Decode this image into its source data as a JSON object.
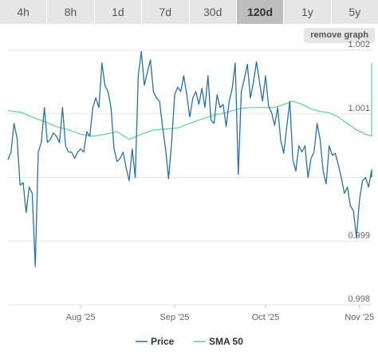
{
  "tabs": [
    {
      "label": "4h",
      "active": false
    },
    {
      "label": "8h",
      "active": false
    },
    {
      "label": "1d",
      "active": false
    },
    {
      "label": "7d",
      "active": false
    },
    {
      "label": "30d",
      "active": false
    },
    {
      "label": "120d",
      "active": true
    },
    {
      "label": "1y",
      "active": false
    },
    {
      "label": "5y",
      "active": false
    }
  ],
  "remove_graph_label": "remove graph",
  "colors": {
    "price": "#2b6fa4",
    "sma": "#5ed28a",
    "grid": "#e6e6e6",
    "tab_bg": "#e6e6e6",
    "tab_active_bg": "#bdbdbd"
  },
  "chart_data": {
    "type": "line",
    "grid": true,
    "legend_position": "bottom",
    "ylim": [
      0.998,
      1.002
    ],
    "y_ticks": [
      0.998,
      0.999,
      1.0,
      1.001,
      1.002
    ],
    "y_tick_labels": [
      "0.998",
      "0.999",
      "",
      "1.001",
      "1.002"
    ],
    "x_range": [
      "2025-07-08",
      "2025-11-05"
    ],
    "x_ticks": [
      {
        "date": "2025-08-01",
        "label": "Aug '25"
      },
      {
        "date": "2025-09-01",
        "label": "Sep '25"
      },
      {
        "date": "2025-10-01",
        "label": "Oct '25"
      },
      {
        "date": "2025-11-01",
        "label": "Nov '25"
      }
    ],
    "series": [
      {
        "name": "Price",
        "color": "#2b6fa4",
        "points": [
          [
            "2025-07-08",
            1.00028
          ],
          [
            "2025-07-09",
            1.0004
          ],
          [
            "2025-07-10",
            1.00085
          ],
          [
            "2025-07-11",
            1.00062
          ],
          [
            "2025-07-12",
            0.99988
          ],
          [
            "2025-07-13",
            0.99992
          ],
          [
            "2025-07-14",
            0.99945
          ],
          [
            "2025-07-15",
            0.99985
          ],
          [
            "2025-07-16",
            0.99975
          ],
          [
            "2025-07-17",
            0.9986
          ],
          [
            "2025-07-18",
            1.0004
          ],
          [
            "2025-07-19",
            1.00055
          ],
          [
            "2025-07-20",
            1.0011
          ],
          [
            "2025-07-21",
            1.00055
          ],
          [
            "2025-07-22",
            1.0006
          ],
          [
            "2025-07-23",
            1.0007
          ],
          [
            "2025-07-24",
            1.00065
          ],
          [
            "2025-07-25",
            1.00055
          ],
          [
            "2025-07-26",
            1.0011
          ],
          [
            "2025-07-27",
            1.0005
          ],
          [
            "2025-07-28",
            1.0004
          ],
          [
            "2025-07-29",
            1.0004
          ],
          [
            "2025-07-30",
            1.0003
          ],
          [
            "2025-07-31",
            1.0004
          ],
          [
            "2025-08-01",
            1.00045
          ],
          [
            "2025-08-02",
            1.0004
          ],
          [
            "2025-08-03",
            1.00072
          ],
          [
            "2025-08-04",
            1.00065
          ],
          [
            "2025-08-05",
            1.0011
          ],
          [
            "2025-08-06",
            1.00125
          ],
          [
            "2025-08-07",
            1.0011
          ],
          [
            "2025-08-08",
            1.0018
          ],
          [
            "2025-08-09",
            1.00145
          ],
          [
            "2025-08-10",
            1.00135
          ],
          [
            "2025-08-11",
            1.0011
          ],
          [
            "2025-08-12",
            1.00045
          ],
          [
            "2025-08-13",
            1.00025
          ],
          [
            "2025-08-14",
            1.0003
          ],
          [
            "2025-08-15",
            1.0004
          ],
          [
            "2025-08-16",
            1.00015
          ],
          [
            "2025-08-17",
            0.99995
          ],
          [
            "2025-08-18",
            1.00045
          ],
          [
            "2025-08-19",
            1.0
          ],
          [
            "2025-08-20",
            1.0016
          ],
          [
            "2025-08-21",
            1.00198
          ],
          [
            "2025-08-22",
            1.00145
          ],
          [
            "2025-08-23",
            1.00165
          ],
          [
            "2025-08-24",
            1.00185
          ],
          [
            "2025-08-25",
            1.00135
          ],
          [
            "2025-08-26",
            1.00125
          ],
          [
            "2025-08-27",
            1.0012
          ],
          [
            "2025-08-28",
            1.0008
          ],
          [
            "2025-08-29",
            1.00045
          ],
          [
            "2025-08-30",
            0.99998
          ],
          [
            "2025-08-31",
            1.00055
          ],
          [
            "2025-09-01",
            1.0013
          ],
          [
            "2025-09-02",
            1.00142
          ],
          [
            "2025-09-03",
            1.00135
          ],
          [
            "2025-09-04",
            1.0016
          ],
          [
            "2025-09-05",
            1.0013
          ],
          [
            "2025-09-06",
            1.00095
          ],
          [
            "2025-09-07",
            1.00125
          ],
          [
            "2025-09-08",
            1.00135
          ],
          [
            "2025-09-09",
            1.00115
          ],
          [
            "2025-09-10",
            1.0014
          ],
          [
            "2025-09-11",
            1.0011
          ],
          [
            "2025-09-12",
            1.0016
          ],
          [
            "2025-09-13",
            1.0009
          ],
          [
            "2025-09-14",
            1.00085
          ],
          [
            "2025-09-15",
            1.0013
          ],
          [
            "2025-09-16",
            1.0011
          ],
          [
            "2025-09-17",
            1.00115
          ],
          [
            "2025-09-18",
            1.0008
          ],
          [
            "2025-09-19",
            1.0012
          ],
          [
            "2025-09-20",
            1.0014
          ],
          [
            "2025-09-21",
            1.0018
          ],
          [
            "2025-09-22",
            1.00005
          ],
          [
            "2025-09-23",
            1.00135
          ],
          [
            "2025-09-24",
            1.00155
          ],
          [
            "2025-09-25",
            1.00178
          ],
          [
            "2025-09-26",
            1.00125
          ],
          [
            "2025-09-27",
            1.0015
          ],
          [
            "2025-09-28",
            1.00182
          ],
          [
            "2025-09-29",
            1.0015
          ],
          [
            "2025-09-30",
            1.0012
          ],
          [
            "2025-10-01",
            1.0016
          ],
          [
            "2025-10-02",
            1.00112
          ],
          [
            "2025-10-03",
            1.00102
          ],
          [
            "2025-10-04",
            1.00082
          ],
          [
            "2025-10-05",
            1.0011
          ],
          [
            "2025-10-06",
            1.00058
          ],
          [
            "2025-10-07",
            1.00038
          ],
          [
            "2025-10-08",
            1.0008
          ],
          [
            "2025-10-09",
            1.0012
          ],
          [
            "2025-10-10",
            1.00028
          ],
          [
            "2025-10-11",
            1.0001
          ],
          [
            "2025-10-12",
            1.0005
          ],
          [
            "2025-10-13",
            1.0004
          ],
          [
            "2025-10-14",
            1.0005
          ],
          [
            "2025-10-15",
            1.0
          ],
          [
            "2025-10-16",
            1.0003
          ],
          [
            "2025-10-17",
            1.0004
          ],
          [
            "2025-10-18",
            1.00085
          ],
          [
            "2025-10-19",
            1.0006
          ],
          [
            "2025-10-20",
            1.0001
          ],
          [
            "2025-10-21",
            0.9999
          ],
          [
            "2025-10-22",
            1.0005
          ],
          [
            "2025-10-23",
            1.00035
          ],
          [
            "2025-10-24",
            1.00038
          ],
          [
            "2025-10-25",
            1.0002
          ],
          [
            "2025-10-26",
            1.0
          ],
          [
            "2025-10-27",
            0.99975
          ],
          [
            "2025-10-28",
            0.99985
          ],
          [
            "2025-10-29",
            0.99955
          ],
          [
            "2025-10-30",
            0.99948
          ],
          [
            "2025-10-31",
            0.99905
          ],
          [
            "2025-11-01",
            0.99965
          ],
          [
            "2025-11-02",
            0.99995
          ],
          [
            "2025-11-03",
            1.0
          ],
          [
            "2025-11-04",
            0.99985
          ],
          [
            "2025-11-05",
            1.00012
          ],
          [
            "2025-11-05",
            1.0
          ]
        ]
      },
      {
        "name": "SMA 50",
        "color": "#5ed28a",
        "points": [
          [
            "2025-07-08",
            1.00105
          ],
          [
            "2025-07-12",
            1.00103
          ],
          [
            "2025-07-16",
            1.00095
          ],
          [
            "2025-07-20",
            1.00088
          ],
          [
            "2025-07-24",
            1.0008
          ],
          [
            "2025-07-28",
            1.00075
          ],
          [
            "2025-08-01",
            1.00068
          ],
          [
            "2025-08-05",
            1.00065
          ],
          [
            "2025-08-09",
            1.00068
          ],
          [
            "2025-08-13",
            1.00072
          ],
          [
            "2025-08-17",
            1.0006
          ],
          [
            "2025-08-21",
            1.00068
          ],
          [
            "2025-08-25",
            1.00075
          ],
          [
            "2025-08-29",
            1.00076
          ],
          [
            "2025-09-02",
            1.00078
          ],
          [
            "2025-09-06",
            1.00085
          ],
          [
            "2025-09-10",
            1.00092
          ],
          [
            "2025-09-14",
            1.00098
          ],
          [
            "2025-09-18",
            1.00102
          ],
          [
            "2025-09-22",
            1.00108
          ],
          [
            "2025-09-26",
            1.0011
          ],
          [
            "2025-09-30",
            1.0011
          ],
          [
            "2025-10-04",
            1.0011
          ],
          [
            "2025-10-07",
            1.00115
          ],
          [
            "2025-10-10",
            1.0012
          ],
          [
            "2025-10-13",
            1.00115
          ],
          [
            "2025-10-16",
            1.00108
          ],
          [
            "2025-10-19",
            1.00104
          ],
          [
            "2025-10-22",
            1.00102
          ],
          [
            "2025-10-25",
            1.00095
          ],
          [
            "2025-10-28",
            1.00085
          ],
          [
            "2025-10-31",
            1.00075
          ],
          [
            "2025-11-03",
            1.00068
          ],
          [
            "2025-11-05",
            1.00065
          ],
          [
            "2025-11-05",
            1.0018
          ]
        ]
      }
    ]
  }
}
